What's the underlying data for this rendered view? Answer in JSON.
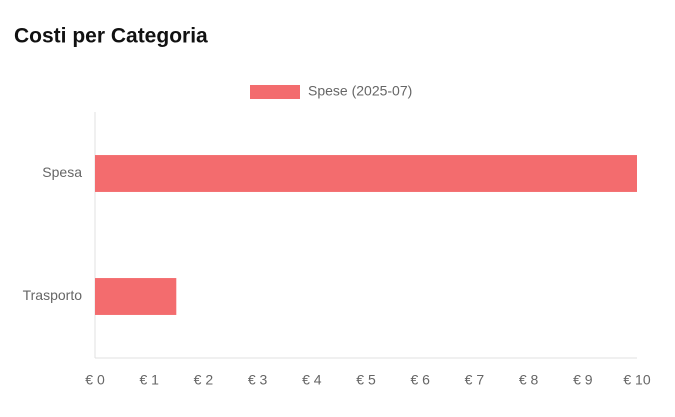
{
  "chart_data": {
    "type": "hbar",
    "title": "Costi per Categoria",
    "categories": [
      "Spesa",
      "Trasporto"
    ],
    "series": [
      {
        "name": "Spese (2025-07)",
        "color": "#f36c6e",
        "values": [
          10,
          1.5
        ]
      }
    ],
    "xlim": [
      0,
      10
    ],
    "xticks": [
      {
        "value": 0,
        "label": "€ 0"
      },
      {
        "value": 1,
        "label": "€ 1"
      },
      {
        "value": 2,
        "label": "€ 2"
      },
      {
        "value": 3,
        "label": "€ 3"
      },
      {
        "value": 4,
        "label": "€ 4"
      },
      {
        "value": 5,
        "label": "€ 5"
      },
      {
        "value": 6,
        "label": "€ 6"
      },
      {
        "value": 7,
        "label": "€ 7"
      },
      {
        "value": 8,
        "label": "€ 8"
      },
      {
        "value": 9,
        "label": "€ 9"
      },
      {
        "value": 10,
        "label": "€ 10"
      }
    ],
    "grid": false,
    "legend": "top"
  }
}
